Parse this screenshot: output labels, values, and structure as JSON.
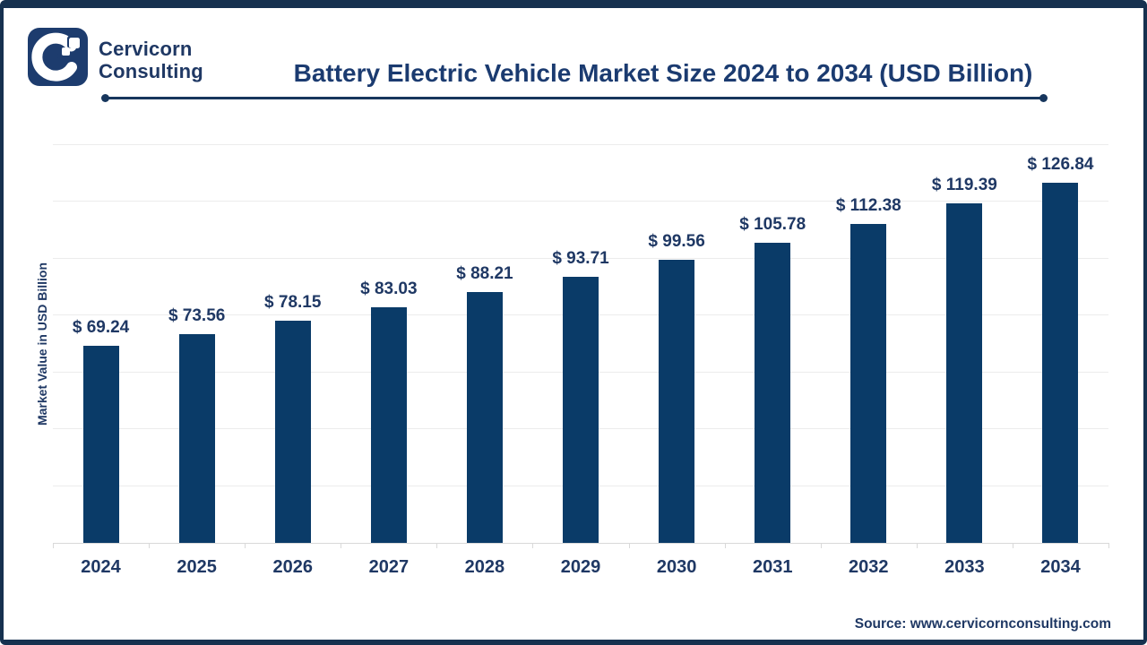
{
  "brand": {
    "line1": "Cervicorn",
    "line2": "Consulting"
  },
  "header": {
    "title": "Battery Electric Vehicle Market Size 2024 to 2034 (USD Billion)"
  },
  "y_axis_label": "Market Value in USD Billion",
  "source": "Source: www.cervicornconsulting.com",
  "colors": {
    "bar_fill": "#0A3B68",
    "accent_navy": "#1F3864",
    "frame_border": "#16314F",
    "gridline": "#ECECEC",
    "axis_line": "#D9D9D9"
  },
  "chart_data": {
    "type": "bar",
    "title": "Battery Electric Vehicle Market Size 2024 to 2034 (USD Billion)",
    "categories": [
      "2024",
      "2025",
      "2026",
      "2027",
      "2028",
      "2029",
      "2030",
      "2031",
      "2032",
      "2033",
      "2034"
    ],
    "values": [
      69.24,
      73.56,
      78.15,
      83.03,
      88.21,
      93.71,
      99.56,
      105.78,
      112.38,
      119.39,
      126.84
    ],
    "value_prefix": "$ ",
    "value_decimals": 2,
    "xlabel": "",
    "ylabel": "Market Value in USD Billion",
    "ylim": [
      0,
      140
    ],
    "gridline_step": 20,
    "grid": true,
    "legend_position": "none",
    "y_tick_labels_visible": false
  }
}
